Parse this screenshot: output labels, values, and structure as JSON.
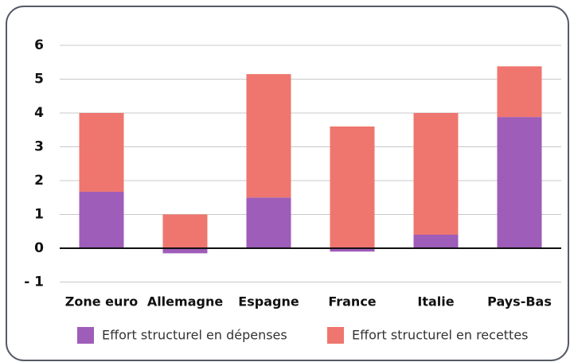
{
  "chart_data": {
    "type": "stacked_bar",
    "categories": [
      "Zone euro",
      "Allemagne",
      "Espagne",
      "France",
      "Italie",
      "Pays-Bas"
    ],
    "series": [
      {
        "name": "Effort structurel en dépenses",
        "color": "#9e5db8",
        "values": [
          1.67,
          -0.15,
          1.5,
          -0.1,
          0.4,
          3.88
        ]
      },
      {
        "name": "Effort structurel en recettes",
        "color": "#ee766f",
        "values": [
          2.33,
          1.0,
          3.65,
          3.6,
          3.6,
          1.5
        ]
      }
    ],
    "ylim": [
      -1.2,
      6.3
    ],
    "yticks": [
      {
        "value": -1,
        "label": "- 1"
      },
      0,
      1,
      2,
      3,
      4,
      5,
      6
    ],
    "grid": true,
    "legend": "bottom"
  }
}
